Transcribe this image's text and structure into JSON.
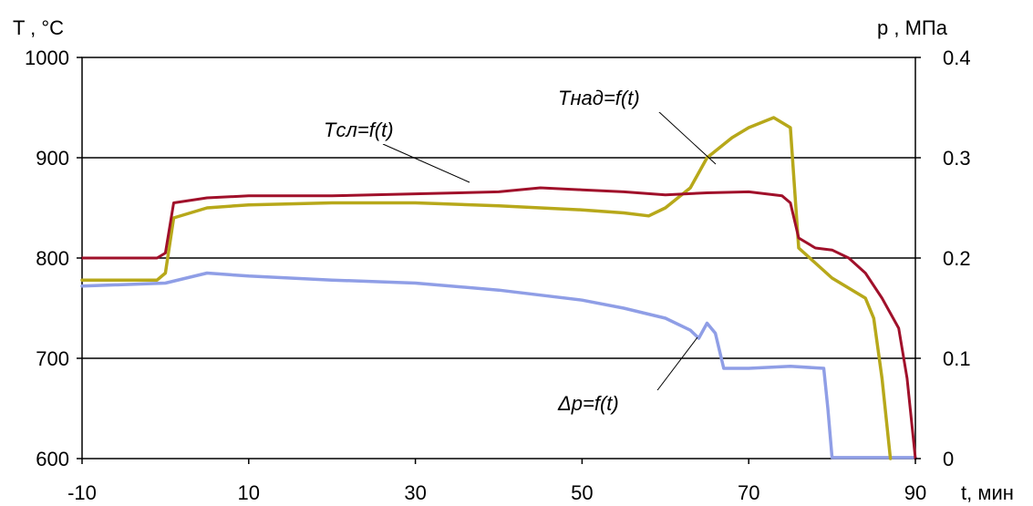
{
  "chart_data": {
    "type": "line",
    "xlabel": "t, мин",
    "ylabel_left": "T , °С",
    "ylabel_right": "p , МПа",
    "xlim": [
      -10,
      90
    ],
    "ylim_left": [
      600,
      1000
    ],
    "ylim_right": [
      0,
      0.4
    ],
    "x_ticks": [
      "-10",
      "10",
      "30",
      "50",
      "70",
      "90"
    ],
    "y_left_ticks": [
      "600",
      "700",
      "800",
      "900",
      "1000"
    ],
    "y_right_ticks": [
      "0",
      "0.1",
      "0.2",
      "0.3",
      "0.4"
    ],
    "grid": "horizontal",
    "series": [
      {
        "name": "Tсл=f(t)",
        "axis": "left",
        "color": "#a0102a",
        "x": [
          -10,
          -1,
          0,
          1,
          5,
          10,
          20,
          30,
          40,
          45,
          50,
          55,
          60,
          65,
          70,
          74,
          75,
          76,
          78,
          80,
          82,
          84,
          86,
          88,
          89,
          90
        ],
        "y": [
          800,
          800,
          805,
          855,
          860,
          862,
          862,
          864,
          866,
          870,
          868,
          866,
          863,
          865,
          866,
          862,
          855,
          820,
          810,
          808,
          800,
          785,
          760,
          730,
          680,
          600
        ]
      },
      {
        "name": "Tнад=f(t)",
        "axis": "left",
        "color": "#b7a81a",
        "x": [
          -10,
          -1,
          0,
          1,
          5,
          10,
          20,
          30,
          40,
          45,
          50,
          55,
          58,
          60,
          63,
          65,
          68,
          70,
          73,
          75,
          76,
          78,
          80,
          82,
          84,
          85,
          86,
          87
        ],
        "y": [
          778,
          778,
          785,
          840,
          850,
          853,
          855,
          855,
          852,
          850,
          848,
          845,
          842,
          850,
          870,
          900,
          920,
          930,
          940,
          930,
          810,
          795,
          780,
          770,
          760,
          740,
          680,
          600
        ]
      },
      {
        "name": "Δp=f(t)",
        "axis": "right",
        "color": "#8f9ee6",
        "x": [
          -10,
          0,
          5,
          10,
          20,
          30,
          40,
          45,
          50,
          55,
          60,
          63,
          64,
          65,
          66,
          67,
          70,
          75,
          79,
          79.5,
          80,
          85,
          90
        ],
        "y": [
          0.172,
          0.175,
          0.185,
          0.182,
          0.178,
          0.175,
          0.168,
          0.163,
          0.158,
          0.15,
          0.14,
          0.128,
          0.12,
          0.135,
          0.125,
          0.09,
          0.09,
          0.092,
          0.09,
          0.05,
          0.001,
          0.001,
          0.001
        ]
      }
    ],
    "annotations": [
      {
        "text": "Tсл=f(t)",
        "x": 40,
        "y": 912
      },
      {
        "text": "Tнад=f(t)",
        "x": 65,
        "y": 940
      },
      {
        "text": "Δp=f(t)",
        "x": 62,
        "y": 0.05
      }
    ]
  }
}
